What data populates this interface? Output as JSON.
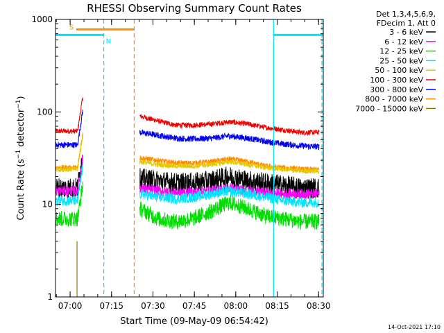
{
  "chart_data": {
    "type": "line",
    "title": "RHESSI Observing Summary Count Rates",
    "xlabel": "Start Time (09-May-09 06:54:42)",
    "ylabel": "Count Rate (s⁻¹ detector⁻¹)",
    "ylabel_base": "Count Rate (s",
    "ylabel_mid": " detector",
    "ylabel_end": ")",
    "ylabel_sup": "−1",
    "y_scale": "log",
    "ylim": [
      1,
      1000
    ],
    "xlim_minutes_since_start": [
      0,
      97
    ],
    "x_ticks": [
      {
        "label": "07:00",
        "value": 5.3
      },
      {
        "label": "07:15",
        "value": 20.3
      },
      {
        "label": "07:30",
        "value": 35.3
      },
      {
        "label": "07:45",
        "value": 50.3
      },
      {
        "label": "08:00",
        "value": 65.3
      },
      {
        "label": "08:15",
        "value": 80.3
      },
      {
        "label": "08:30",
        "value": 95.3
      }
    ],
    "y_ticks": [
      {
        "label": "1",
        "value": 1
      },
      {
        "label": "10",
        "value": 10
      },
      {
        "label": "100",
        "value": 100
      },
      {
        "label": "1000",
        "value": 1000
      }
    ],
    "legend": {
      "position": "right",
      "header": [
        "Det 1,3,4,5,6,9,",
        "FDecim 1, Att 0"
      ],
      "entries": [
        {
          "name": "3 - 6 keV",
          "color": "#000000"
        },
        {
          "name": "6 - 12 keV",
          "color": "#ff00ff"
        },
        {
          "name": "12 - 25 keV",
          "color": "#00dd00"
        },
        {
          "name": "25 - 50 keV",
          "color": "#00e5ff"
        },
        {
          "name": "50 - 100 keV",
          "color": "#e6c800"
        },
        {
          "name": "100 - 300 keV",
          "color": "#ee0000"
        },
        {
          "name": "300 - 800 keV",
          "color": "#0000ee"
        },
        {
          "name": "800 - 7000 keV",
          "color": "#ff8c00"
        },
        {
          "name": "7000 - 15000 keV",
          "color": "#8b7d00"
        }
      ]
    },
    "data_gaps_minutes": [
      [
        10.5,
        30.5
      ]
    ],
    "series_levels": [
      {
        "name": "100 - 300 keV",
        "before_gap": 62,
        "after_gap": [
          90,
          80,
          72,
          72,
          74,
          78,
          74,
          68,
          64,
          60,
          60
        ],
        "noise": 0.03
      },
      {
        "name": "300 - 800 keV",
        "before_gap": 44,
        "after_gap": [
          60,
          56,
          52,
          51,
          52,
          55,
          52,
          48,
          45,
          43,
          42
        ],
        "noise": 0.035
      },
      {
        "name": "800 - 7000 keV",
        "before_gap": 25,
        "after_gap": [
          32,
          30,
          28,
          28,
          29,
          31,
          29,
          26,
          25,
          24,
          24
        ],
        "noise": 0.03
      },
      {
        "name": "50 - 100 keV",
        "before_gap": 24,
        "after_gap": [
          29,
          27,
          26,
          26,
          27,
          29,
          27,
          25,
          24,
          23,
          23
        ],
        "noise": 0.03
      },
      {
        "name": "3 - 6 keV",
        "before_gap": 15,
        "after_gap": [
          19,
          18,
          17,
          17,
          18,
          20,
          18,
          17,
          16,
          15,
          15
        ],
        "noise": 0.12
      },
      {
        "name": "6 - 12 keV",
        "before_gap": 14,
        "after_gap": [
          15,
          14,
          13.5,
          13.5,
          14,
          15,
          14,
          13.5,
          13,
          13,
          13
        ],
        "noise": 0.06
      },
      {
        "name": "25 - 50 keV",
        "before_gap": 11,
        "after_gap": [
          13,
          12,
          11.5,
          12,
          13,
          14,
          13,
          12,
          11,
          10.5,
          10.5
        ],
        "noise": 0.06
      },
      {
        "name": "12 - 25 keV",
        "before_gap": 7,
        "after_gap": [
          9,
          7,
          6.5,
          7,
          8.5,
          10.5,
          9,
          7.5,
          7,
          6.5,
          6.5
        ],
        "noise": 0.09
      }
    ],
    "annotations": [
      {
        "label": "S",
        "color": "#ff8c00",
        "from_min": 7.5,
        "to_min": 28.5,
        "level": 780
      },
      {
        "label": "N",
        "color": "#00e5ff",
        "from_min": 0,
        "to_min": 17.5,
        "level": 680
      },
      {
        "label": "",
        "color": "#00e5ff",
        "from_min": 79,
        "to_min": 97,
        "level": 680
      }
    ],
    "vertical_markers": [
      {
        "minute": 17.5,
        "color": "#00e5ff",
        "style": "dashed"
      },
      {
        "minute": 28.5,
        "color": "#ff8c00",
        "style": "dashed"
      },
      {
        "minute": 79,
        "color": "#00e5ff",
        "style": "solid"
      },
      {
        "minute": 96.5,
        "color": "#00e5ff",
        "style": "dashed"
      }
    ]
  },
  "footer": {
    "timestamp": "14-Oct-2021 17:10"
  }
}
